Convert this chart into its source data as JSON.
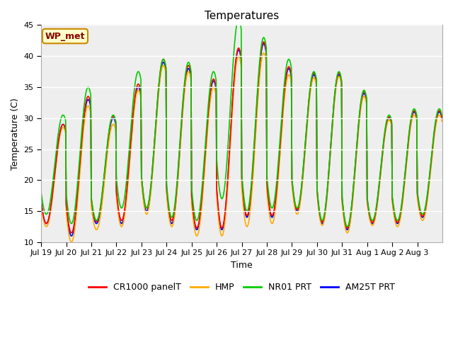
{
  "title": "Temperatures",
  "xlabel": "Time",
  "ylabel": "Temperature (C)",
  "ylim": [
    10,
    45
  ],
  "yticks": [
    10,
    15,
    20,
    25,
    30,
    35,
    40,
    45
  ],
  "xtick_labels": [
    "Jul 19",
    "Jul 20",
    "Jul 21",
    "Jul 22",
    "Jul 23",
    "Jul 24",
    "Jul 25",
    "Jul 26",
    "Jul 27",
    "Jul 28",
    "Jul 29",
    "Jul 30",
    "Jul 31",
    "Aug 1",
    "Aug 2",
    "Aug 3"
  ],
  "legend_labels": [
    "CR1000 panelT",
    "HMP",
    "NR01 PRT",
    "AM25T PRT"
  ],
  "legend_colors": [
    "#ff0000",
    "#ffaa00",
    "#00cc00",
    "#0000ff"
  ],
  "annotation_text": "WP_met",
  "annotation_bg": "#ffffcc",
  "annotation_border": "#cc8800",
  "annotation_text_color": "#880000",
  "background_color": "#ffffff",
  "plot_bg_color": "#eeeeee",
  "grid_color": "#ffffff",
  "title_fontsize": 11,
  "axis_fontsize": 9,
  "tick_fontsize": 8,
  "legend_fontsize": 9,
  "line_width": 1.2,
  "days": 16,
  "base_min": [
    13,
    11,
    13,
    13,
    15,
    13,
    12,
    12,
    14,
    14,
    15,
    13,
    12,
    13,
    13,
    14
  ],
  "base_max": [
    29,
    33,
    30,
    35,
    39,
    38,
    36,
    41,
    42,
    38,
    37,
    37,
    34,
    30,
    31,
    31
  ],
  "offsets_red": [
    0.0,
    0.5,
    0.3,
    0.5,
    0.5,
    0.5,
    0.3,
    0.3,
    0.3,
    0.3,
    0.3,
    0.3,
    0.3,
    0.2,
    0.2,
    0.2
  ],
  "offsets_orange": [
    -0.5,
    -1.0,
    -1.0,
    -0.5,
    -0.5,
    -0.5,
    -1.0,
    -1.0,
    -1.5,
    -1.0,
    -0.5,
    -0.3,
    -0.5,
    -0.3,
    -0.5,
    -0.5
  ],
  "offsets_green": [
    1.5,
    2.0,
    0.5,
    2.5,
    0.5,
    1.0,
    1.5,
    5.0,
    1.0,
    1.5,
    0.5,
    0.5,
    0.5,
    0.5,
    0.5,
    0.5
  ],
  "offsets_blue": [
    0.0,
    0.0,
    0.0,
    0.0,
    0.0,
    0.0,
    0.0,
    0.0,
    0.0,
    0.0,
    0.0,
    0.0,
    0.0,
    0.0,
    0.0,
    0.0
  ]
}
